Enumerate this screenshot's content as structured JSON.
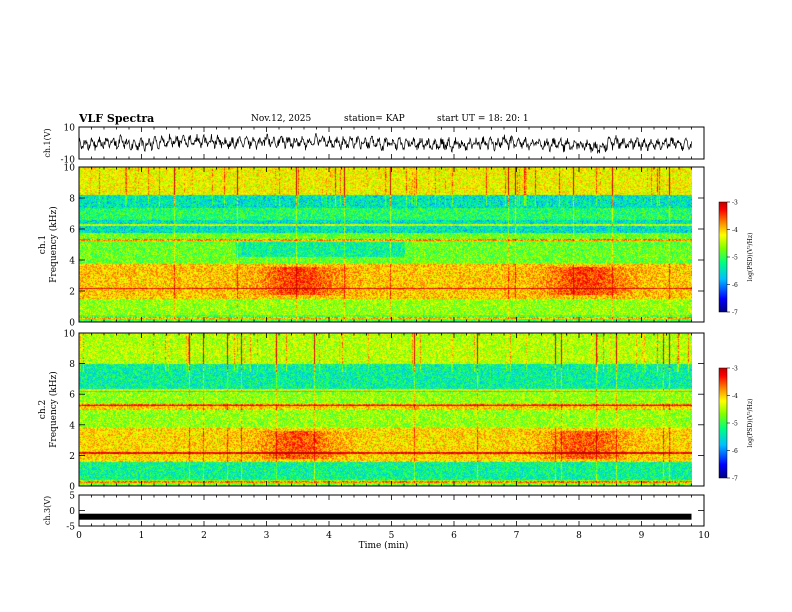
{
  "header": {
    "title": "VLF Spectra",
    "date": "Nov.12, 2025",
    "station": "station= KAP",
    "start": "start  UT  =   18: 20: 1"
  },
  "chart_data": [
    {
      "type": "line",
      "panel": "ch1-waveform",
      "ylabel": "ch.1(V)",
      "ylim": [
        -10,
        10
      ],
      "yticks": [
        -10,
        10
      ],
      "xlim": [
        0,
        10
      ],
      "x_extent": [
        0,
        9.8
      ],
      "description_values": "dense oscillating waveform roughly between -6 and 6 V"
    },
    {
      "type": "heatmap",
      "panel": "ch1-spectrogram",
      "ylabel": "ch.1 Frequency (kHz)",
      "ylim": [
        0,
        10
      ],
      "yticks": [
        0,
        2,
        4,
        6,
        8,
        10
      ],
      "xlim": [
        0,
        10
      ],
      "x_extent": [
        0,
        9.8
      ],
      "colorbar": {
        "label": "log(PSD)(V²/Hz)",
        "min": -7,
        "max": -3,
        "ticks": [
          -3,
          -4,
          -5,
          -6,
          -7
        ]
      },
      "features": [
        {
          "band_khz": [
            1.5,
            3.8
          ],
          "level": "high",
          "peaks_min": [
            3.5,
            8.1
          ]
        },
        {
          "band_khz": [
            5.8,
            8.2
          ],
          "level": "low"
        },
        {
          "band_khz": [
            8.2,
            10
          ],
          "level": "high-spiky"
        }
      ]
    },
    {
      "type": "heatmap",
      "panel": "ch2-spectrogram",
      "ylabel": "ch.2 Frequency (kHz)",
      "ylim": [
        0,
        10
      ],
      "yticks": [
        0,
        2,
        4,
        6,
        8,
        10
      ],
      "xlim": [
        0,
        10
      ],
      "x_extent": [
        0,
        9.8
      ],
      "colorbar": {
        "label": "log(PSD)(V²/Hz)",
        "min": -7,
        "max": -3,
        "ticks": [
          -3,
          -4,
          -5,
          -6,
          -7
        ]
      },
      "features": [
        {
          "band_khz": [
            1.8,
            3.8
          ],
          "level": "high",
          "peaks_min": [
            3.5,
            8.1
          ]
        },
        {
          "band_khz": [
            6.2,
            8.0
          ],
          "level": "low"
        },
        {
          "band_khz": [
            0.5,
            1.5
          ],
          "level": "low"
        }
      ]
    },
    {
      "type": "line",
      "panel": "ch3-waveform",
      "ylabel": "ch.3(V)",
      "ylim": [
        -5,
        5
      ],
      "yticks": [
        -5,
        0,
        5
      ],
      "xlim": [
        0,
        10
      ],
      "x_extent": [
        0,
        9.8
      ],
      "values_constant": -2
    }
  ],
  "xaxis": {
    "label": "Time  (min)",
    "ticks": [
      "0",
      "1",
      "2",
      "3",
      "4",
      "5",
      "6",
      "7",
      "8",
      "9",
      "10"
    ]
  },
  "colors": {
    "colormap": [
      "#00007f",
      "#0000ff",
      "#00bfff",
      "#00ff80",
      "#80ff00",
      "#ffff00",
      "#ff8000",
      "#ff0000",
      "#c00000"
    ],
    "trace": "#000000"
  }
}
